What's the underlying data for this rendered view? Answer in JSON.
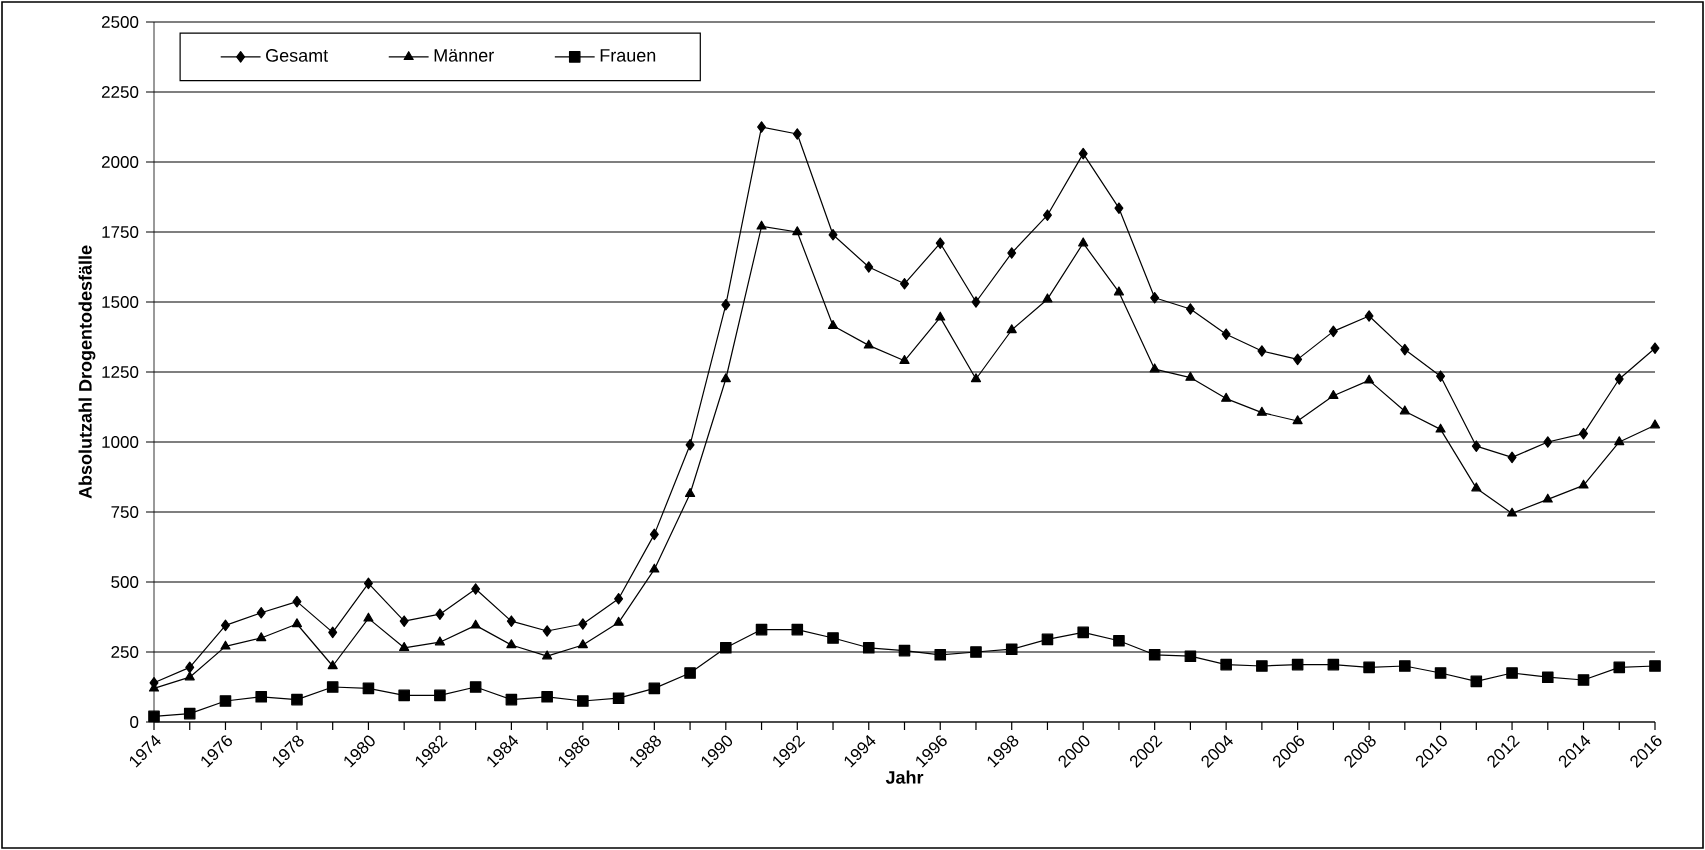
{
  "chart_data": {
    "type": "line",
    "xlabel": "Jahr",
    "ylabel": "Absolutzahl Drogentodesfälle",
    "x": [
      1974,
      1975,
      1976,
      1977,
      1978,
      1979,
      1980,
      1981,
      1982,
      1983,
      1984,
      1985,
      1986,
      1987,
      1988,
      1989,
      1990,
      1991,
      1992,
      1993,
      1994,
      1995,
      1996,
      1997,
      1998,
      1999,
      2000,
      2001,
      2002,
      2003,
      2004,
      2005,
      2006,
      2007,
      2008,
      2009,
      2010,
      2011,
      2012,
      2013,
      2014,
      2015,
      2016
    ],
    "series": [
      {
        "name": "Gesamt",
        "color": "#000000",
        "marker": "diamond",
        "values": [
          140,
          195,
          345,
          390,
          430,
          320,
          495,
          360,
          385,
          475,
          360,
          325,
          350,
          440,
          670,
          990,
          1490,
          2125,
          2100,
          1740,
          1625,
          1565,
          1710,
          1500,
          1675,
          1810,
          2030,
          1835,
          1515,
          1475,
          1385,
          1325,
          1295,
          1395,
          1450,
          1330,
          1235,
          985,
          945,
          1000,
          1030,
          1225,
          1335
        ]
      },
      {
        "name": "Männer",
        "color": "#000000",
        "marker": "triangle",
        "values": [
          120,
          160,
          270,
          300,
          350,
          200,
          370,
          265,
          285,
          345,
          275,
          235,
          275,
          355,
          545,
          815,
          1225,
          1770,
          1750,
          1415,
          1345,
          1290,
          1445,
          1225,
          1400,
          1510,
          1710,
          1535,
          1260,
          1230,
          1155,
          1105,
          1075,
          1165,
          1220,
          1110,
          1045,
          835,
          745,
          795,
          845,
          1000,
          1060
        ]
      },
      {
        "name": "Frauen",
        "color": "#000000",
        "marker": "square",
        "values": [
          20,
          30,
          75,
          90,
          80,
          125,
          120,
          95,
          95,
          125,
          80,
          90,
          75,
          85,
          120,
          175,
          265,
          330,
          330,
          300,
          265,
          255,
          240,
          250,
          260,
          295,
          320,
          290,
          240,
          235,
          205,
          200,
          205,
          205,
          195,
          200,
          175,
          145,
          175,
          160,
          150,
          195,
          200
        ]
      }
    ],
    "xlim": [
      1974,
      2016
    ],
    "xticks": [
      1974,
      {
        "value": 1975,
        "label": null
      },
      1976,
      {
        "value": 1977,
        "label": null
      },
      1978,
      {
        "value": 1979,
        "label": null
      },
      1980,
      {
        "value": 1981,
        "label": null
      },
      1982,
      {
        "value": 1983,
        "label": null
      },
      1984,
      {
        "value": 1985,
        "label": null
      },
      1986,
      {
        "value": 1987,
        "label": null
      },
      1988,
      {
        "value": 1989,
        "label": null
      },
      1990,
      {
        "value": 1991,
        "label": null
      },
      1992,
      {
        "value": 1993,
        "label": null
      },
      1994,
      {
        "value": 1995,
        "label": null
      },
      1996,
      {
        "value": 1997,
        "label": null
      },
      1998,
      {
        "value": 1999,
        "label": null
      },
      2000,
      {
        "value": 2001,
        "label": null
      },
      2002,
      {
        "value": 2003,
        "label": null
      },
      2004,
      {
        "value": 2005,
        "label": null
      },
      2006,
      {
        "value": 2007,
        "label": null
      },
      2008,
      {
        "value": 2009,
        "label": null
      },
      2010,
      {
        "value": 2011,
        "label": null
      },
      2012,
      {
        "value": 2013,
        "label": null
      },
      2014,
      {
        "value": 2015,
        "label": null
      },
      2016
    ],
    "ylim": [
      0,
      2500
    ],
    "yticks": [
      0,
      250,
      500,
      750,
      1000,
      1250,
      1500,
      1750,
      2000,
      2250,
      2500
    ],
    "grid": "y",
    "legend": "top left",
    "line_style": "solid"
  }
}
